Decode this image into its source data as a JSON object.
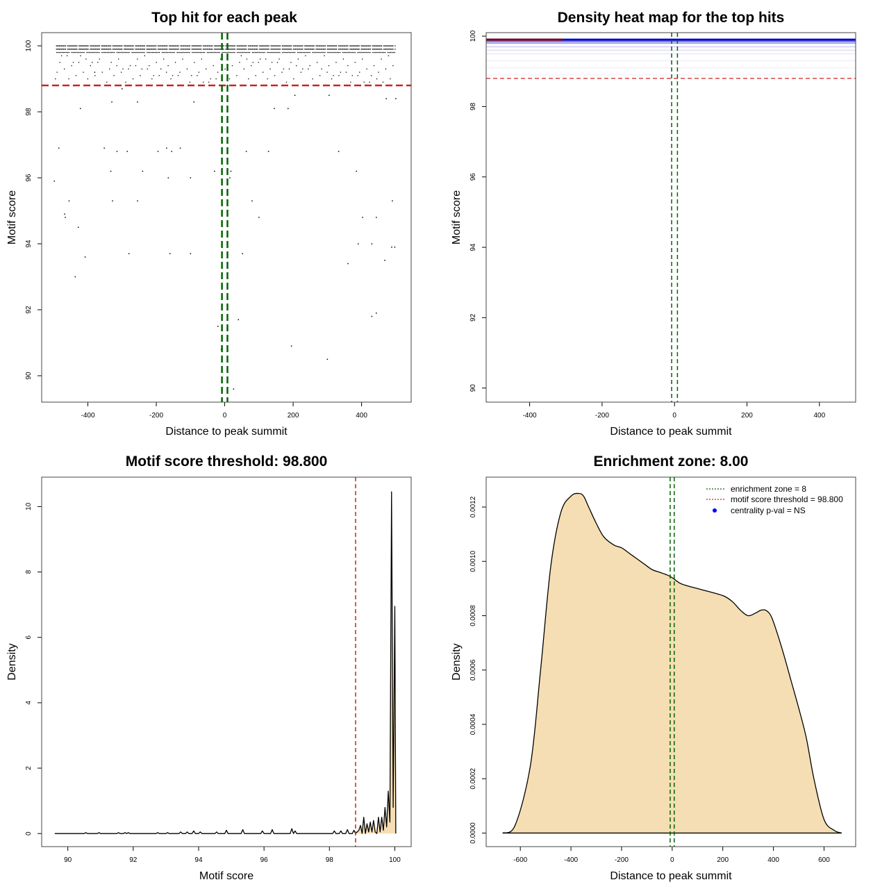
{
  "colors": {
    "threshold_red": "#cc2222",
    "zone_green": "#006400",
    "density_fill": "#f5deb3",
    "heat_blue": "#0000cc",
    "heat_red": "#8b0000",
    "points": "#000000",
    "centrality_dot": "#0000ff"
  },
  "chart_data": [
    {
      "id": "topleft",
      "type": "scatter",
      "title": "Top hit for each peak",
      "xlabel": "Distance to peak summit",
      "ylabel": "Motif score",
      "xlim": [
        -535,
        545
      ],
      "ylim": [
        89.2,
        100.4
      ],
      "x_ticks": [
        -400,
        -200,
        0,
        200,
        400
      ],
      "y_ticks": [
        90,
        92,
        94,
        96,
        98,
        100
      ],
      "threshold_y": 98.8,
      "zone_x": [
        -8,
        8
      ],
      "dense_rows": [
        {
          "y": 100.0,
          "x_range": [
            -495,
            500
          ],
          "step": 3
        },
        {
          "y": 99.9,
          "x_range": [
            -495,
            500
          ],
          "step": 3
        },
        {
          "y": 99.8,
          "x_range": [
            -495,
            500
          ],
          "step": 4
        }
      ],
      "sparse_band": {
        "y_range": [
          98.9,
          99.7
        ],
        "x_range": [
          -495,
          500
        ],
        "count": 140
      },
      "points": [
        [
          -498,
          95.9
        ],
        [
          -485,
          96.9
        ],
        [
          -468,
          94.9
        ],
        [
          -466,
          94.8
        ],
        [
          -455,
          95.3
        ],
        [
          -437,
          93.0
        ],
        [
          -428,
          94.5
        ],
        [
          -422,
          98.1
        ],
        [
          -408,
          93.6
        ],
        [
          -380,
          99.2
        ],
        [
          -352,
          96.9
        ],
        [
          -333,
          96.2
        ],
        [
          -330,
          98.3
        ],
        [
          -328,
          95.3
        ],
        [
          -315,
          96.8
        ],
        [
          -300,
          98.7
        ],
        [
          -285,
          96.8
        ],
        [
          -280,
          93.7
        ],
        [
          -255,
          95.3
        ],
        [
          -255,
          98.3
        ],
        [
          -240,
          96.2
        ],
        [
          -195,
          96.8
        ],
        [
          -170,
          96.9
        ],
        [
          -165,
          96.0
        ],
        [
          -155,
          96.8
        ],
        [
          -160,
          93.7
        ],
        [
          -130,
          96.9
        ],
        [
          -100,
          93.7
        ],
        [
          -100,
          96.0
        ],
        [
          -90,
          98.3
        ],
        [
          -30,
          96.2
        ],
        [
          -20,
          91.5
        ],
        [
          -10,
          90.8
        ],
        [
          18,
          96.2
        ],
        [
          15,
          96.0
        ],
        [
          26,
          89.6
        ],
        [
          40,
          91.7
        ],
        [
          52,
          93.7
        ],
        [
          63,
          96.8
        ],
        [
          80,
          95.3
        ],
        [
          100,
          94.8
        ],
        [
          128,
          96.8
        ],
        [
          145,
          98.1
        ],
        [
          185,
          98.1
        ],
        [
          195,
          90.9
        ],
        [
          205,
          98.5
        ],
        [
          300,
          90.5
        ],
        [
          305,
          98.5
        ],
        [
          333,
          96.8
        ],
        [
          360,
          93.4
        ],
        [
          385,
          96.2
        ],
        [
          390,
          94.0
        ],
        [
          403,
          94.8
        ],
        [
          430,
          94.0
        ],
        [
          430,
          91.8
        ],
        [
          443,
          91.9
        ],
        [
          443,
          94.8
        ],
        [
          468,
          93.5
        ],
        [
          472,
          98.4
        ],
        [
          488,
          93.9
        ],
        [
          490,
          95.3
        ],
        [
          497,
          93.9
        ],
        [
          500,
          98.4
        ]
      ]
    },
    {
      "id": "topright",
      "type": "heatmap",
      "title": "Density heat map for the top hits",
      "xlabel": "Distance to peak summit",
      "ylabel": "Motif score",
      "xlim": [
        -520,
        500
      ],
      "ylim": [
        89.6,
        100.1
      ],
      "x_ticks": [
        -400,
        -200,
        0,
        200,
        400
      ],
      "y_ticks": [
        90,
        92,
        94,
        96,
        98,
        100
      ],
      "threshold_y": 98.8,
      "zone_x": [
        -8,
        8
      ],
      "bands": [
        {
          "y": 99.9,
          "intensity": 1.0
        },
        {
          "y": 99.85,
          "intensity": 0.55
        },
        {
          "y": 99.8,
          "intensity": 0.35
        },
        {
          "y": 99.7,
          "intensity": 0.15
        },
        {
          "y": 99.6,
          "intensity": 0.1
        },
        {
          "y": 99.5,
          "intensity": 0.07
        },
        {
          "y": 99.3,
          "intensity": 0.05
        },
        {
          "y": 99.1,
          "intensity": 0.04
        },
        {
          "y": 98.9,
          "intensity": 0.03
        }
      ]
    },
    {
      "id": "bottomleft",
      "type": "area",
      "title": "Motif score threshold: 98.800",
      "xlabel": "Motif score",
      "ylabel": "Density",
      "xlim": [
        89.2,
        100.5
      ],
      "ylim": [
        -0.4,
        10.9
      ],
      "x_ticks": [
        90,
        92,
        94,
        96,
        98,
        100
      ],
      "y_ticks": [
        0,
        2,
        4,
        6,
        8,
        10
      ],
      "threshold_x": 98.8,
      "fill_from_x": 98.8,
      "x": [
        89.6,
        90.5,
        90.55,
        90.6,
        90.9,
        90.95,
        91.0,
        91.5,
        91.55,
        91.6,
        91.7,
        91.75,
        91.8,
        91.85,
        91.9,
        92.7,
        92.75,
        92.8,
        93.0,
        93.05,
        93.1,
        93.4,
        93.45,
        93.5,
        93.6,
        93.65,
        93.7,
        93.8,
        93.85,
        93.9,
        94.0,
        94.05,
        94.1,
        94.5,
        94.55,
        94.6,
        94.8,
        94.85,
        94.9,
        95.3,
        95.35,
        95.4,
        95.9,
        95.95,
        96.0,
        96.2,
        96.25,
        96.3,
        96.8,
        96.85,
        96.9,
        96.95,
        97.0,
        98.1,
        98.15,
        98.2,
        98.3,
        98.35,
        98.4,
        98.5,
        98.55,
        98.6,
        98.7,
        98.75,
        98.8,
        98.9,
        98.95,
        99.0,
        99.05,
        99.1,
        99.15,
        99.2,
        99.25,
        99.3,
        99.35,
        99.4,
        99.45,
        99.5,
        99.55,
        99.6,
        99.65,
        99.7,
        99.75,
        99.8,
        99.85,
        99.9,
        99.95,
        100.0,
        100.03
      ],
      "y": [
        0.0,
        0.0,
        0.03,
        0.0,
        0.0,
        0.03,
        0.0,
        0.0,
        0.03,
        0.0,
        0.0,
        0.03,
        0.0,
        0.03,
        0.0,
        0.0,
        0.03,
        0.0,
        0.0,
        0.03,
        0.0,
        0.0,
        0.05,
        0.0,
        0.0,
        0.05,
        0.0,
        0.0,
        0.08,
        0.0,
        0.0,
        0.05,
        0.0,
        0.0,
        0.05,
        0.0,
        0.0,
        0.1,
        0.0,
        0.0,
        0.12,
        0.0,
        0.0,
        0.08,
        0.0,
        0.0,
        0.12,
        0.0,
        0.0,
        0.15,
        0.0,
        0.08,
        0.0,
        0.0,
        0.08,
        0.0,
        0.0,
        0.08,
        0.0,
        0.0,
        0.12,
        0.0,
        0.0,
        0.1,
        0.0,
        0.1,
        0.25,
        0.0,
        0.5,
        0.0,
        0.3,
        0.05,
        0.35,
        0.05,
        0.4,
        0.05,
        0.0,
        0.5,
        0.05,
        0.5,
        0.1,
        0.8,
        0.2,
        1.3,
        0.35,
        10.45,
        0.8,
        6.95,
        0.0
      ]
    },
    {
      "id": "bottomright",
      "type": "area",
      "title": "Enrichment zone: 8.00",
      "xlabel": "Distance to peak summit",
      "ylabel": "Density",
      "xlim": [
        -735,
        725
      ],
      "ylim": [
        -5e-05,
        0.00131
      ],
      "x_ticks": [
        -600,
        -400,
        -200,
        0,
        200,
        400,
        600
      ],
      "y_ticks": [
        0.0,
        0.0002,
        0.0004,
        0.0006,
        0.0008,
        0.001,
        0.0012
      ],
      "y_tick_labels": [
        "0.0000",
        "0.0002",
        "0.0004",
        "0.0006",
        "0.0008",
        "0.0010",
        "0.0012"
      ],
      "zone_x": [
        -8,
        8
      ],
      "x": [
        -670,
        -620,
        -560,
        -520,
        -480,
        -440,
        -400,
        -370,
        -350,
        -330,
        -300,
        -270,
        -230,
        -200,
        -170,
        -140,
        -110,
        -80,
        -50,
        -20,
        0,
        30,
        60,
        100,
        140,
        180,
        210,
        240,
        270,
        300,
        330,
        350,
        370,
        390,
        410,
        440,
        470,
        500,
        530,
        560,
        600,
        640,
        670
      ],
      "y": [
        0.0,
        3e-05,
        0.00025,
        0.0006,
        0.00098,
        0.00118,
        0.00124,
        0.00125,
        0.00124,
        0.0012,
        0.00114,
        0.00109,
        0.00106,
        0.00105,
        0.00103,
        0.00101,
        0.00099,
        0.00097,
        0.00096,
        0.00095,
        0.00094,
        0.00092,
        0.00091,
        0.0009,
        0.00089,
        0.00088,
        0.00087,
        0.00085,
        0.00082,
        0.0008,
        0.00081,
        0.00082,
        0.00082,
        0.0008,
        0.00075,
        0.00066,
        0.00056,
        0.00046,
        0.00035,
        0.0002,
        5e-05,
        1e-05,
        0.0
      ],
      "legend": {
        "position": "top-right",
        "entries": [
          {
            "label": "enrichment zone = 8",
            "style": "dotted-line",
            "color": "#006400"
          },
          {
            "label": "motif score threshold = 98.800",
            "style": "dotted-line",
            "color": "#cc2222"
          },
          {
            "label": "centrality p-val = NS",
            "style": "dot",
            "color": "#0000ff"
          }
        ]
      }
    }
  ]
}
